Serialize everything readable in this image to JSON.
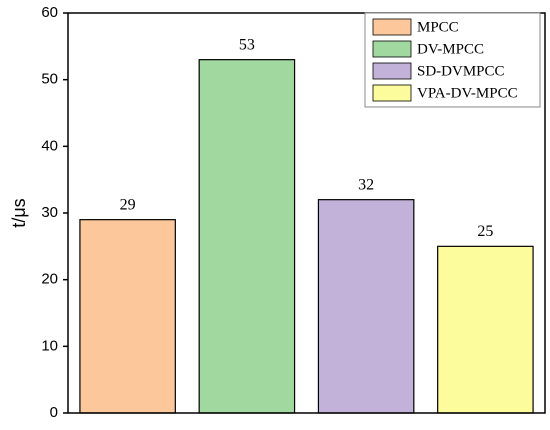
{
  "chart_data": {
    "type": "bar",
    "y_label": "t/μs",
    "categories": [
      null,
      null,
      null,
      null
    ],
    "series": [
      {
        "name": "MPCC",
        "color": "#fcc89b",
        "values": [
          29,
          null,
          null,
          null
        ]
      },
      {
        "name": "DV-MPCC",
        "color": "#a0d8a0",
        "values": [
          null,
          53,
          null,
          null
        ]
      },
      {
        "name": "SD-DVMPCC",
        "color": "#c2b2d9",
        "values": [
          null,
          null,
          32,
          null
        ]
      },
      {
        "name": "VPA-DV-MPCC",
        "color": "#fcfc9c",
        "values": [
          null,
          null,
          null,
          25
        ]
      }
    ],
    "ylim": [
      0,
      60
    ],
    "yticks": [
      0,
      10,
      20,
      30,
      40,
      50,
      60
    ],
    "grid": false,
    "legend": "top-right"
  }
}
